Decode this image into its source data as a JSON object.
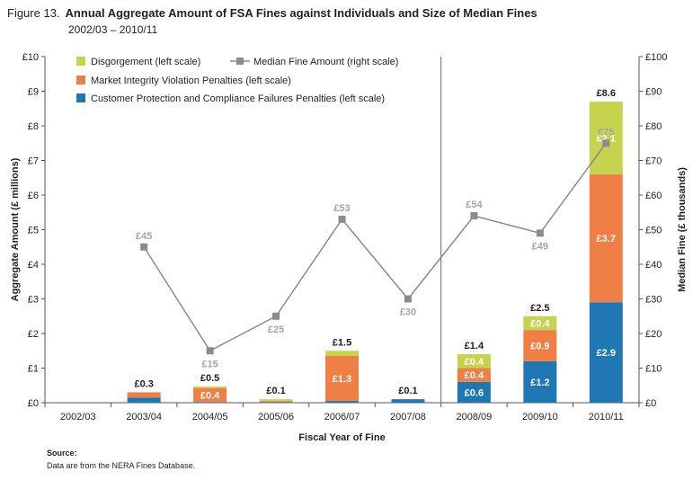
{
  "figure_label": "Figure 13.",
  "source_heading": "Source:",
  "source_text": "Data are from the NERA Fines Database.",
  "chart_data": {
    "type": "bar",
    "stacked": true,
    "title": "Annual Aggregate Amount of FSA Fines against Individuals and Size of Median Fines",
    "subtitle": "2002/03 – 2010/11",
    "xlabel": "Fiscal Year of Fine",
    "ylabel": "Aggregate Amount (£ millions)",
    "y2label": "Median Fine (£ thousands)",
    "ylim": [
      0,
      10
    ],
    "y2lim": [
      0,
      100
    ],
    "yticks": [
      "£0",
      "£1",
      "£2",
      "£3",
      "£4",
      "£5",
      "£6",
      "£7",
      "£8",
      "£9",
      "£10"
    ],
    "y2ticks": [
      "£0",
      "£10",
      "£20",
      "£30",
      "£40",
      "£50",
      "£60",
      "£70",
      "£80",
      "£90",
      "£100"
    ],
    "categories": [
      "2002/03",
      "2003/04",
      "2004/05",
      "2005/06",
      "2006/07",
      "2007/08",
      "2008/09",
      "2009/10",
      "2010/11"
    ],
    "divider_after_index": 5,
    "series": [
      {
        "name": "Customer Protection and Compliance Failures Penalties (left scale)",
        "color": "#1f77b4",
        "values": [
          0,
          0.15,
          0.02,
          0.02,
          0.05,
          0.1,
          0.6,
          1.2,
          2.9
        ],
        "labels": [
          "",
          "",
          "",
          "",
          "",
          "",
          "£0.6",
          "£1.2",
          "£2.9"
        ]
      },
      {
        "name": "Market Integrity Violation Penalties (left scale)",
        "color": "#f07f45",
        "values": [
          0,
          0.15,
          0.4,
          0.03,
          1.3,
          0,
          0.4,
          0.9,
          3.7
        ],
        "labels": [
          "",
          "",
          "£0.4",
          "",
          "£1.3",
          "",
          "£0.4",
          "£0.9",
          "£3.7"
        ]
      },
      {
        "name": "Disgorgement (left scale)",
        "color": "#c6d34e",
        "values": [
          0,
          0,
          0.05,
          0.05,
          0.15,
          0,
          0.4,
          0.4,
          2.1
        ],
        "labels": [
          "",
          "",
          "",
          "",
          "",
          "",
          "£0.4",
          "£0.4",
          "£2.1"
        ]
      }
    ],
    "totals": [
      "",
      "£0.3",
      "£0.5",
      "£0.1",
      "£1.5",
      "£0.1",
      "£1.4",
      "£2.5",
      "£8.6"
    ],
    "line_series": {
      "name": "Median Fine Amount (right scale)",
      "color": "#8c8c8c",
      "values": [
        null,
        45,
        15,
        25,
        53,
        30,
        54,
        49,
        75
      ],
      "labels": [
        "",
        "£45",
        "£15",
        "£25",
        "£53",
        "£30",
        "£54",
        "£49",
        "£75"
      ],
      "label_positions": [
        "",
        "above",
        "below",
        "below",
        "above",
        "below",
        "above",
        "below",
        "above"
      ]
    },
    "legend_placement": "top-left",
    "grid": false
  }
}
